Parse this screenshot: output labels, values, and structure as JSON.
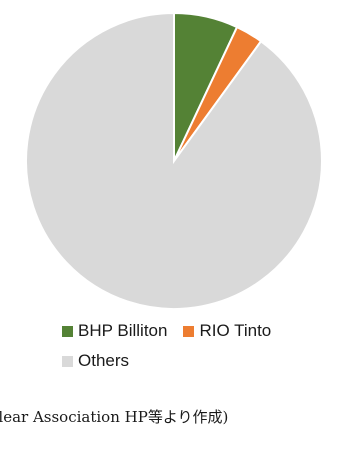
{
  "chart_data": {
    "type": "pie",
    "categories": [
      "BHP Billiton",
      "RIO Tinto",
      "Others"
    ],
    "values": [
      7,
      3,
      90
    ],
    "colors": [
      "#548235",
      "#ED7D31",
      "#D9D9D9"
    ],
    "start_angle": "12 o'clock",
    "direction": "clockwise",
    "legend_position": "bottom"
  },
  "source_text": "clear Association HP等より作成)"
}
